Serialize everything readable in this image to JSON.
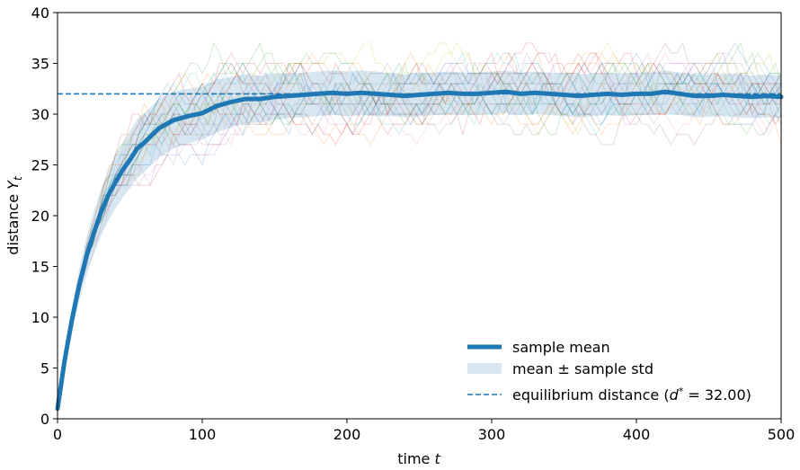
{
  "chart_data": {
    "type": "line",
    "title": "",
    "xlabel": "time t",
    "ylabel": "distance Y_t",
    "xlim": [
      0,
      500
    ],
    "ylim": [
      0,
      40
    ],
    "x_ticks": [
      "0",
      "100",
      "200",
      "300",
      "400",
      "500"
    ],
    "y_ticks": [
      "0",
      "5",
      "10",
      "15",
      "20",
      "25",
      "30",
      "35",
      "40"
    ],
    "grid": false,
    "legend_position": "lower-right",
    "legend": {
      "mean_label": "sample mean",
      "band_label": "mean ± sample std",
      "equilibrium_label": "equilibrium distance (d* = 32.00)"
    },
    "equilibrium": 32.0,
    "series": [
      {
        "name": "sample mean",
        "color": "#1f77b4",
        "x": [
          0,
          5,
          10,
          15,
          20,
          25,
          30,
          35,
          40,
          45,
          50,
          55,
          60,
          70,
          80,
          90,
          100,
          110,
          120,
          130,
          140,
          150,
          160,
          170,
          180,
          190,
          200,
          210,
          220,
          230,
          240,
          250,
          260,
          270,
          280,
          290,
          300,
          310,
          320,
          330,
          340,
          350,
          360,
          370,
          380,
          390,
          400,
          410,
          420,
          430,
          440,
          450,
          460,
          470,
          480,
          490,
          500
        ],
        "y": [
          1.0,
          5.8,
          9.8,
          13.2,
          16.0,
          18.3,
          20.3,
          22.0,
          23.3,
          24.5,
          25.5,
          26.6,
          27.2,
          28.6,
          29.4,
          29.8,
          30.1,
          30.8,
          31.2,
          31.5,
          31.5,
          31.7,
          31.8,
          31.9,
          32.0,
          32.1,
          32.0,
          32.1,
          32.0,
          31.9,
          31.8,
          31.9,
          32.0,
          32.1,
          32.0,
          32.0,
          32.1,
          32.2,
          32.0,
          32.1,
          32.0,
          31.9,
          31.8,
          31.9,
          32.0,
          31.9,
          32.0,
          32.0,
          32.2,
          32.0,
          31.8,
          31.8,
          31.9,
          31.8,
          31.7,
          31.8,
          31.7
        ]
      }
    ],
    "std_band": {
      "name": "mean ± sample std",
      "color": "#1f77b4",
      "lower": [
        0.8,
        5.0,
        8.6,
        11.6,
        14.1,
        16.2,
        18.0,
        19.5,
        20.7,
        21.8,
        22.7,
        23.7,
        24.3,
        25.7,
        26.6,
        27.1,
        27.5,
        28.2,
        28.7,
        29.1,
        29.2,
        29.4,
        29.6,
        29.7,
        29.8,
        29.9,
        29.8,
        29.9,
        29.8,
        29.8,
        29.7,
        29.8,
        29.9,
        30.0,
        29.9,
        29.9,
        30.0,
        30.1,
        29.9,
        30.0,
        29.9,
        29.8,
        29.7,
        29.8,
        29.9,
        29.8,
        29.9,
        29.9,
        30.1,
        29.9,
        29.7,
        29.7,
        29.8,
        29.7,
        29.6,
        29.7,
        29.6
      ],
      "upper": [
        1.2,
        6.6,
        11.0,
        14.8,
        17.9,
        20.4,
        22.6,
        24.5,
        25.9,
        27.2,
        28.3,
        29.5,
        30.1,
        31.5,
        32.2,
        32.5,
        32.7,
        33.4,
        33.7,
        33.9,
        33.8,
        34.0,
        34.0,
        34.1,
        34.2,
        34.3,
        34.2,
        34.3,
        34.2,
        34.0,
        33.9,
        34.0,
        34.1,
        34.2,
        34.1,
        34.1,
        34.2,
        34.3,
        34.1,
        34.2,
        34.1,
        34.0,
        33.9,
        34.0,
        34.1,
        34.0,
        34.1,
        34.1,
        34.3,
        34.1,
        33.9,
        33.9,
        34.0,
        33.9,
        33.8,
        33.9,
        33.8
      ]
    }
  }
}
